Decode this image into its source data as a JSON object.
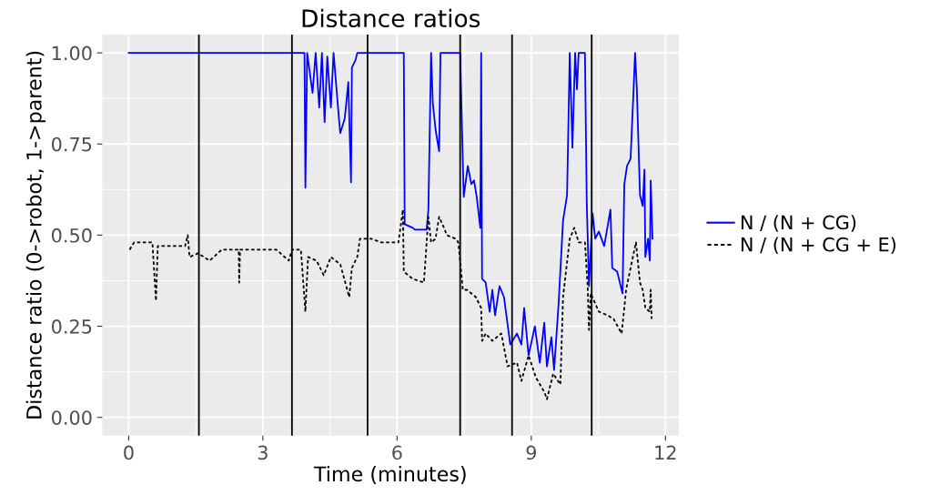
{
  "chart_data": {
    "type": "line",
    "title": "Distance ratios",
    "xlabel": "Time (minutes)",
    "ylabel": "Distance ratio (0->robot, 1->parent)",
    "xlim": [
      -0.59,
      12.3
    ],
    "ylim": [
      -0.05,
      1.05
    ],
    "xticks": [
      0,
      3,
      6,
      9,
      12
    ],
    "yticks": [
      {
        "value": 0,
        "label": "0.00"
      },
      {
        "value": 0.25,
        "label": "0.25"
      },
      {
        "value": 0.5,
        "label": "0.50"
      },
      {
        "value": 0.75,
        "label": "0.75"
      },
      {
        "value": 1,
        "label": "1.00"
      }
    ],
    "grid": true,
    "legend": "right",
    "ref_lines": [
      {
        "axis": "x",
        "value": 1.57,
        "color": "#000000"
      },
      {
        "axis": "x",
        "value": 3.65,
        "color": "#000000"
      },
      {
        "axis": "x",
        "value": 5.34,
        "color": "#000000"
      },
      {
        "axis": "x",
        "value": 7.41,
        "color": "#000000"
      },
      {
        "axis": "x",
        "value": 8.57,
        "color": "#000000"
      },
      {
        "axis": "x",
        "value": 10.35,
        "color": "#000000"
      }
    ],
    "series": [
      {
        "name": "N / (N + CG)",
        "color": "#0000ff",
        "line_style": "solid",
        "x": [
          0,
          3.93,
          3.95,
          3.99,
          4.11,
          4.18,
          4.26,
          4.32,
          4.38,
          4.44,
          4.52,
          4.58,
          4.7,
          4.73,
          4.83,
          4.91,
          4.97,
          4.99,
          5.07,
          5.11,
          6.15,
          6.17,
          6.35,
          6.4,
          6.66,
          6.7,
          6.76,
          6.8,
          6.86,
          6.94,
          6.97,
          7.41,
          7.45,
          7.49,
          7.58,
          7.66,
          7.72,
          7.78,
          7.86,
          7.88,
          7.9,
          7.98,
          8.07,
          8.13,
          8.19,
          8.29,
          8.39,
          8.53,
          8.68,
          8.78,
          8.84,
          8.94,
          9.08,
          9.19,
          9.29,
          9.35,
          9.45,
          9.51,
          9.61,
          9.71,
          9.8,
          9.86,
          9.92,
          9.98,
          10.02,
          10.06,
          10.2,
          10.24,
          10.29,
          10.37,
          10.43,
          10.51,
          10.63,
          10.77,
          10.81,
          10.92,
          11.02,
          11.04,
          11.08,
          11.14,
          11.22,
          11.28,
          11.32,
          11.36,
          11.43,
          11.49,
          11.53,
          11.55,
          11.61,
          11.65,
          11.67,
          11.71
        ],
        "values": [
          1,
          1,
          0.63,
          1,
          0.89,
          1,
          0.85,
          1,
          0.81,
          0.99,
          0.85,
          1,
          0.82,
          0.78,
          0.82,
          0.92,
          0.645,
          0.96,
          0.98,
          1,
          1,
          0.53,
          0.52,
          0.515,
          0.515,
          0.57,
          1,
          0.86,
          0.79,
          0.73,
          1,
          1,
          0.8,
          0.605,
          0.69,
          0.64,
          0.65,
          0.605,
          0.52,
          1,
          0.38,
          0.37,
          0.29,
          0.35,
          0.28,
          0.36,
          0.33,
          0.2,
          0.23,
          0.2,
          0.3,
          0.17,
          0.25,
          0.15,
          0.26,
          0.14,
          0.22,
          0.13,
          0.31,
          0.54,
          0.61,
          1,
          0.74,
          1,
          0.9,
          1,
          1,
          0.59,
          0.36,
          0.56,
          0.49,
          0.51,
          0.47,
          0.57,
          0.41,
          0.4,
          0.35,
          0.34,
          0.64,
          0.69,
          0.71,
          0.88,
          1,
          0.9,
          0.61,
          0.58,
          0.68,
          0.44,
          0.49,
          0.43,
          0.65,
          0.49
        ]
      },
      {
        "name": "N / (N + CG + E)",
        "color": "#000000",
        "line_style": "dotted",
        "x": [
          0.02,
          0.12,
          0.53,
          0.61,
          0.65,
          1.26,
          1.32,
          1.36,
          1.55,
          1.81,
          2.08,
          2.46,
          2.47,
          2.49,
          2.83,
          3.3,
          3.58,
          3.65,
          3.85,
          3.95,
          4.01,
          4.2,
          4.36,
          4.52,
          4.73,
          4.93,
          4.99,
          5.11,
          5.17,
          5.42,
          5.64,
          6.03,
          6.13,
          6.15,
          6.35,
          6.6,
          6.7,
          6.76,
          6.86,
          6.94,
          7.05,
          7.11,
          7.31,
          7.37,
          7.47,
          7.56,
          7.76,
          7.88,
          7.9,
          7.98,
          8.13,
          8.33,
          8.47,
          8.68,
          8.78,
          8.94,
          9.1,
          9.29,
          9.35,
          9.49,
          9.65,
          9.71,
          9.86,
          9.96,
          10.06,
          10.2,
          10.26,
          10.29,
          10.33,
          10.51,
          10.71,
          10.84,
          11.02,
          11.12,
          11.22,
          11.34,
          11.43,
          11.49,
          11.55,
          11.65,
          11.67,
          11.69
        ],
        "values": [
          0.46,
          0.48,
          0.48,
          0.32,
          0.47,
          0.47,
          0.5,
          0.44,
          0.45,
          0.43,
          0.46,
          0.46,
          0.37,
          0.46,
          0.46,
          0.46,
          0.43,
          0.46,
          0.46,
          0.29,
          0.44,
          0.43,
          0.39,
          0.44,
          0.42,
          0.33,
          0.41,
          0.44,
          0.49,
          0.49,
          0.48,
          0.48,
          0.57,
          0.4,
          0.38,
          0.37,
          0.55,
          0.48,
          0.49,
          0.55,
          0.52,
          0.5,
          0.49,
          0.48,
          0.35,
          0.35,
          0.33,
          0.3,
          0.21,
          0.23,
          0.21,
          0.23,
          0.14,
          0.15,
          0.1,
          0.17,
          0.11,
          0.07,
          0.05,
          0.12,
          0.09,
          0.33,
          0.49,
          0.52,
          0.48,
          0.48,
          0.36,
          0.24,
          0.34,
          0.29,
          0.28,
          0.27,
          0.23,
          0.35,
          0.41,
          0.48,
          0.37,
          0.35,
          0.3,
          0.29,
          0.35,
          0.27
        ]
      }
    ]
  }
}
